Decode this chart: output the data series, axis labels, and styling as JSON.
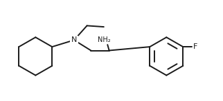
{
  "background_color": "#ffffff",
  "line_color": "#1a1a1a",
  "line_width": 1.4,
  "label_N": "N",
  "label_NH2": "NH₂",
  "label_F": "F",
  "figsize": [
    3.22,
    1.47
  ],
  "dpi": 100,
  "xlim": [
    0,
    9.5
  ],
  "ylim": [
    0,
    4.2
  ]
}
